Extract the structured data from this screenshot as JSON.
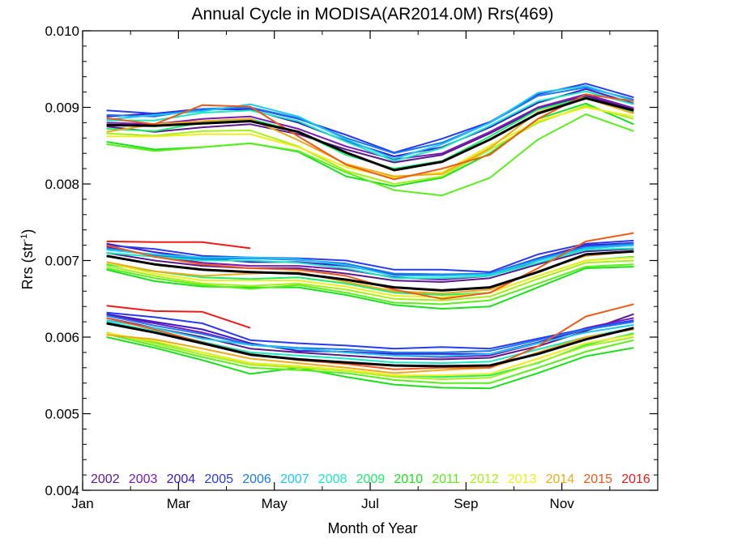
{
  "chart_data": {
    "type": "line",
    "title": "Annual Cycle in MODISA(AR2014.0M) Rrs(469)",
    "xlabel": "Month of Year",
    "ylabel_main": "Rrs (str",
    "ylabel_sup": "-1",
    "ylabel_tail": ")",
    "xlim": [
      0,
      12
    ],
    "ylim": [
      0.004,
      0.01
    ],
    "x_ticks": [
      {
        "value": 0,
        "label": "Jan"
      },
      {
        "value": 2,
        "label": "Mar"
      },
      {
        "value": 4,
        "label": "May"
      },
      {
        "value": 6,
        "label": "Jul"
      },
      {
        "value": 8,
        "label": "Sep"
      },
      {
        "value": 10,
        "label": "Nov"
      }
    ],
    "y_ticks": [
      {
        "value": 0.004,
        "label": "0.004"
      },
      {
        "value": 0.005,
        "label": "0.005"
      },
      {
        "value": 0.006,
        "label": "0.006"
      },
      {
        "value": 0.007,
        "label": "0.007"
      },
      {
        "value": 0.008,
        "label": "0.008"
      },
      {
        "value": 0.009,
        "label": "0.009"
      },
      {
        "value": 0.01,
        "label": "0.010"
      }
    ],
    "x_months": [
      0.5,
      1.5,
      2.5,
      3.5,
      4.5,
      5.5,
      6.5,
      7.5,
      8.5,
      9.5,
      10.5,
      11.5
    ],
    "legend": [
      "2002",
      "2003",
      "2004",
      "2005",
      "2006",
      "2007",
      "2008",
      "2009",
      "2010",
      "2011",
      "2012",
      "2013",
      "2014",
      "2015",
      "2016"
    ],
    "legend_colors": [
      "#5a1a8c",
      "#7a1ab8",
      "#3a1acc",
      "#2a3aee",
      "#1a7af0",
      "#1ac8f0",
      "#1ae8c0",
      "#1aee6a",
      "#1ae01a",
      "#5aee1a",
      "#a8ee1a",
      "#eeee1a",
      "#eeaa1a",
      "#ee5a1a",
      "#ee1a1a"
    ],
    "groups": [
      {
        "id": "upper",
        "mean": [
          0.00877,
          0.00876,
          0.00879,
          0.00882,
          0.00868,
          0.00841,
          0.00818,
          0.00829,
          0.00858,
          0.00892,
          0.00912,
          0.00896
        ],
        "series": [
          {
            "year": "2002",
            "values": [
              0.00875,
              0.00868,
              0.00874,
              0.00878,
              0.00865,
              0.00845,
              0.00828,
              0.00838,
              0.00866,
              0.00898,
              0.00915,
              0.00897
            ]
          },
          {
            "year": "2003",
            "values": [
              0.0088,
              0.00878,
              0.00885,
              0.00888,
              0.00872,
              0.00849,
              0.00832,
              0.0084,
              0.00868,
              0.009,
              0.00917,
              0.00899
            ]
          },
          {
            "year": "2004",
            "values": [
              0.00888,
              0.00892,
              0.00898,
              0.00897,
              0.0088,
              0.00856,
              0.00836,
              0.00848,
              0.00874,
              0.00906,
              0.00924,
              0.00905
            ]
          },
          {
            "year": "2005",
            "values": [
              0.00896,
              0.00892,
              0.00897,
              0.00899,
              0.00885,
              0.00864,
              0.00841,
              0.00859,
              0.00881,
              0.00917,
              0.00931,
              0.00913
            ]
          },
          {
            "year": "2006",
            "values": [
              0.0089,
              0.00888,
              0.00898,
              0.009,
              0.00886,
              0.0086,
              0.0084,
              0.00854,
              0.0088,
              0.00915,
              0.00926,
              0.0091
            ]
          },
          {
            "year": "2007",
            "values": [
              0.00884,
              0.0089,
              0.00895,
              0.00904,
              0.00888,
              0.00858,
              0.00833,
              0.00852,
              0.0088,
              0.00919,
              0.00928,
              0.00908
            ]
          },
          {
            "year": "2008",
            "values": [
              0.00883,
              0.00883,
              0.00893,
              0.00896,
              0.00882,
              0.00855,
              0.0083,
              0.00847,
              0.00876,
              0.00908,
              0.00921,
              0.00904
            ]
          },
          {
            "year": "2009",
            "values": [
              0.00872,
              0.00869,
              0.0088,
              0.00885,
              0.00868,
              0.00838,
              0.0082,
              0.0083,
              0.00862,
              0.00897,
              0.00913,
              0.00893
            ]
          },
          {
            "year": "2010",
            "values": [
              0.00855,
              0.00845,
              0.00848,
              0.00853,
              0.00842,
              0.0081,
              0.00797,
              0.00808,
              0.0084,
              0.00885,
              0.00905,
              0.00878
            ]
          },
          {
            "year": "2011",
            "values": [
              0.00852,
              0.00843,
              0.00848,
              0.00853,
              0.00843,
              0.00815,
              0.00792,
              0.00785,
              0.00808,
              0.00858,
              0.00891,
              0.00869
            ]
          },
          {
            "year": "2012",
            "values": [
              0.00866,
              0.00863,
              0.00869,
              0.0087,
              0.00849,
              0.00817,
              0.008,
              0.0081,
              0.00845,
              0.0088,
              0.00902,
              0.00885
            ]
          },
          {
            "year": "2013",
            "values": [
              0.00862,
              0.00862,
              0.00865,
              0.00865,
              0.00848,
              0.00822,
              0.00808,
              0.00815,
              0.0085,
              0.00882,
              0.009,
              0.00888
            ]
          },
          {
            "year": "2014",
            "values": [
              0.00868,
              0.00878,
              0.00882,
              0.00885,
              0.00857,
              0.00826,
              0.0081,
              0.00813,
              0.00847,
              0.00894,
              0.00912,
              0.00892
            ]
          },
          {
            "year": "2015",
            "values": [
              0.00886,
              0.00878,
              0.00903,
              0.00901,
              0.00862,
              0.00825,
              0.00806,
              0.0082,
              0.00838,
              0.00885,
              0.00917,
              0.00908
            ]
          }
        ]
      },
      {
        "id": "middle",
        "mean": [
          0.00706,
          0.00695,
          0.00688,
          0.00685,
          0.00683,
          0.00675,
          0.00665,
          0.00661,
          0.00665,
          0.00685,
          0.00708,
          0.00712
        ],
        "series": [
          {
            "year": "2002",
            "values": [
              0.0071,
              0.007,
              0.00693,
              0.0069,
              0.0069,
              0.00683,
              0.00674,
              0.00672,
              0.00677,
              0.00695,
              0.00712,
              0.00715
            ]
          },
          {
            "year": "2003",
            "values": [
              0.00718,
              0.00706,
              0.00697,
              0.00693,
              0.00693,
              0.00688,
              0.00678,
              0.00675,
              0.0068,
              0.007,
              0.00716,
              0.0072
            ]
          },
          {
            "year": "2004",
            "values": [
              0.00722,
              0.00711,
              0.00703,
              0.00698,
              0.00698,
              0.00693,
              0.00682,
              0.0068,
              0.00683,
              0.00703,
              0.0072,
              0.00723
            ]
          },
          {
            "year": "2005",
            "values": [
              0.0072,
              0.00715,
              0.00706,
              0.00704,
              0.00703,
              0.007,
              0.00688,
              0.00688,
              0.00685,
              0.00708,
              0.00722,
              0.00726
            ]
          },
          {
            "year": "2006",
            "values": [
              0.00716,
              0.00707,
              0.00702,
              0.00703,
              0.00701,
              0.00696,
              0.00683,
              0.00682,
              0.00683,
              0.00702,
              0.00718,
              0.00722
            ]
          },
          {
            "year": "2007",
            "values": [
              0.00714,
              0.00708,
              0.00704,
              0.00704,
              0.00702,
              0.00694,
              0.0068,
              0.0068,
              0.00682,
              0.007,
              0.00716,
              0.0072
            ]
          },
          {
            "year": "2008",
            "values": [
              0.0071,
              0.00705,
              0.007,
              0.007,
              0.00697,
              0.0069,
              0.00677,
              0.00677,
              0.0068,
              0.00697,
              0.00714,
              0.00716
            ]
          },
          {
            "year": "2009",
            "values": [
              0.00695,
              0.00686,
              0.00678,
              0.00676,
              0.00678,
              0.0067,
              0.00658,
              0.00655,
              0.00658,
              0.0068,
              0.007,
              0.00705
            ]
          },
          {
            "year": "2010",
            "values": [
              0.00688,
              0.00673,
              0.00666,
              0.00665,
              0.00665,
              0.00655,
              0.00642,
              0.00637,
              0.0064,
              0.00665,
              0.0069,
              0.00692
            ]
          },
          {
            "year": "2011",
            "values": [
              0.0069,
              0.00677,
              0.00668,
              0.00663,
              0.00668,
              0.00658,
              0.00645,
              0.00643,
              0.00648,
              0.0067,
              0.00692,
              0.00695
            ]
          },
          {
            "year": "2012",
            "values": [
              0.00693,
              0.0068,
              0.0067,
              0.00667,
              0.0067,
              0.00662,
              0.0065,
              0.00648,
              0.00653,
              0.00676,
              0.00697,
              0.007
            ]
          },
          {
            "year": "2013",
            "values": [
              0.00697,
              0.00683,
              0.00674,
              0.00674,
              0.00674,
              0.00666,
              0.00654,
              0.00652,
              0.00658,
              0.0068,
              0.007,
              0.00704
            ]
          },
          {
            "year": "2014",
            "values": [
              0.00698,
              0.00686,
              0.0068,
              0.00683,
              0.00685,
              0.00672,
              0.0066,
              0.00657,
              0.00662,
              0.00686,
              0.00706,
              0.00712
            ]
          },
          {
            "year": "2015",
            "values": [
              0.0072,
              0.00705,
              0.00695,
              0.0069,
              0.00688,
              0.0068,
              0.00662,
              0.0065,
              0.00658,
              0.0069,
              0.00725,
              0.00736
            ]
          },
          {
            "year": "2016",
            "values": [
              0.00725,
              0.00724,
              0.00724,
              0.00716,
              null,
              null,
              null,
              null,
              null,
              null,
              null,
              null
            ]
          }
        ]
      },
      {
        "id": "lower",
        "mean": [
          0.00618,
          0.00606,
          0.00592,
          0.00577,
          0.00571,
          0.00567,
          0.00563,
          0.00562,
          0.00563,
          0.00578,
          0.00597,
          0.00612
        ],
        "series": [
          {
            "year": "2002",
            "values": [
              0.00625,
              0.00612,
              0.006,
              0.00585,
              0.0058,
              0.00576,
              0.00572,
              0.00571,
              0.00573,
              0.00588,
              0.00608,
              0.0063
            ]
          },
          {
            "year": "2003",
            "values": [
              0.00628,
              0.00618,
              0.00606,
              0.0059,
              0.00585,
              0.0058,
              0.00576,
              0.00574,
              0.00576,
              0.00592,
              0.00612,
              0.00625
            ]
          },
          {
            "year": "2004",
            "values": [
              0.0063,
              0.0062,
              0.0061,
              0.00592,
              0.00582,
              0.00581,
              0.00578,
              0.00578,
              0.00578,
              0.00593,
              0.0061,
              0.0062
            ]
          },
          {
            "year": "2005",
            "values": [
              0.00632,
              0.00626,
              0.00618,
              0.00596,
              0.00592,
              0.00589,
              0.00585,
              0.00587,
              0.00585,
              0.00598,
              0.00611,
              0.00622
            ]
          },
          {
            "year": "2006",
            "values": [
              0.00628,
              0.00615,
              0.00604,
              0.0059,
              0.00586,
              0.00584,
              0.0058,
              0.0058,
              0.00582,
              0.00596,
              0.0061,
              0.0062
            ]
          },
          {
            "year": "2007",
            "values": [
              0.00622,
              0.00612,
              0.00598,
              0.0059,
              0.00585,
              0.0058,
              0.00576,
              0.00575,
              0.00578,
              0.00592,
              0.00606,
              0.00616
            ]
          },
          {
            "year": "2008",
            "values": [
              0.0062,
              0.00608,
              0.00594,
              0.0058,
              0.00576,
              0.00572,
              0.00567,
              0.00566,
              0.00568,
              0.00584,
              0.006,
              0.00612
            ]
          },
          {
            "year": "2009",
            "values": [
              0.00605,
              0.00594,
              0.0058,
              0.00566,
              0.00562,
              0.00557,
              0.0055,
              0.00548,
              0.0055,
              0.00566,
              0.0059,
              0.00605
            ]
          },
          {
            "year": "2010",
            "values": [
              0.006,
              0.00586,
              0.0057,
              0.00552,
              0.0056,
              0.00548,
              0.00538,
              0.00534,
              0.00533,
              0.00553,
              0.00575,
              0.00586
            ]
          },
          {
            "year": "2011",
            "values": [
              0.00604,
              0.00589,
              0.00574,
              0.0056,
              0.00557,
              0.00553,
              0.00544,
              0.0054,
              0.0054,
              0.0056,
              0.00581,
              0.00596
            ]
          },
          {
            "year": "2012",
            "values": [
              0.00606,
              0.00592,
              0.00577,
              0.00564,
              0.0056,
              0.00556,
              0.00548,
              0.00545,
              0.00547,
              0.00567,
              0.00588,
              0.006
            ]
          },
          {
            "year": "2013",
            "values": [
              0.00605,
              0.00595,
              0.0058,
              0.00566,
              0.00562,
              0.00557,
              0.0055,
              0.0055,
              0.00552,
              0.00572,
              0.00592,
              0.00603
            ]
          },
          {
            "year": "2014",
            "values": [
              0.00603,
              0.00597,
              0.00585,
              0.00572,
              0.00566,
              0.0056,
              0.00553,
              0.00557,
              0.0056,
              0.0058,
              0.006,
              0.0061
            ]
          },
          {
            "year": "2015",
            "values": [
              0.00625,
              0.0061,
              0.00593,
              0.00578,
              0.0057,
              0.00565,
              0.00558,
              0.0056,
              0.0056,
              0.00588,
              0.00627,
              0.00643
            ]
          },
          {
            "year": "2016",
            "values": [
              0.00641,
              0.00634,
              0.00633,
              0.00612,
              null,
              null,
              null,
              null,
              null,
              null,
              null,
              null
            ]
          }
        ]
      }
    ]
  }
}
